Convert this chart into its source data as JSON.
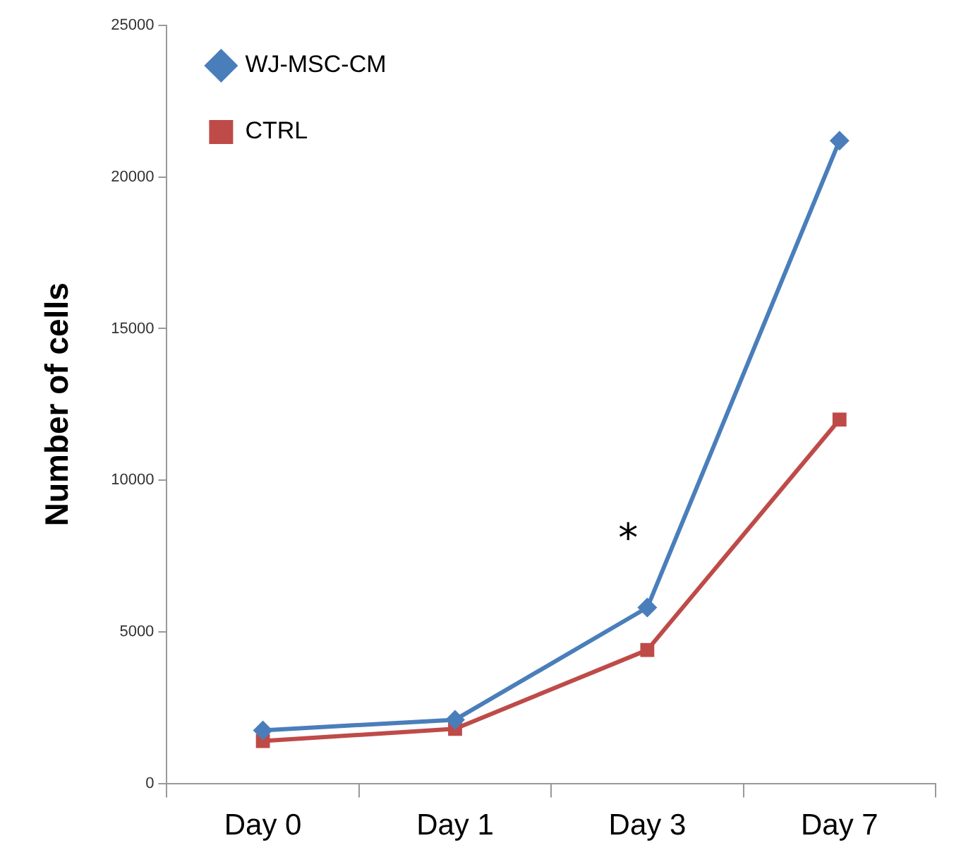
{
  "chart_data": {
    "type": "line",
    "ylabel": "Number of cells",
    "categories": [
      "Day 0",
      "Day 1",
      "Day 3",
      "Day 7"
    ],
    "series": [
      {
        "name": "WJ-MSC-CM",
        "color": "#4a7ebb",
        "marker": "diamond",
        "values": [
          1750,
          2100,
          5800,
          21200
        ]
      },
      {
        "name": "CTRL",
        "color": "#be4b48",
        "marker": "square",
        "values": [
          1400,
          1800,
          4400,
          12000
        ]
      }
    ],
    "ylim": [
      0,
      25000
    ],
    "yticks": [
      0,
      5000,
      10000,
      15000,
      20000,
      25000
    ],
    "grid": false,
    "legend": "top left",
    "line_style": "solid",
    "annotations": [
      "*"
    ]
  }
}
